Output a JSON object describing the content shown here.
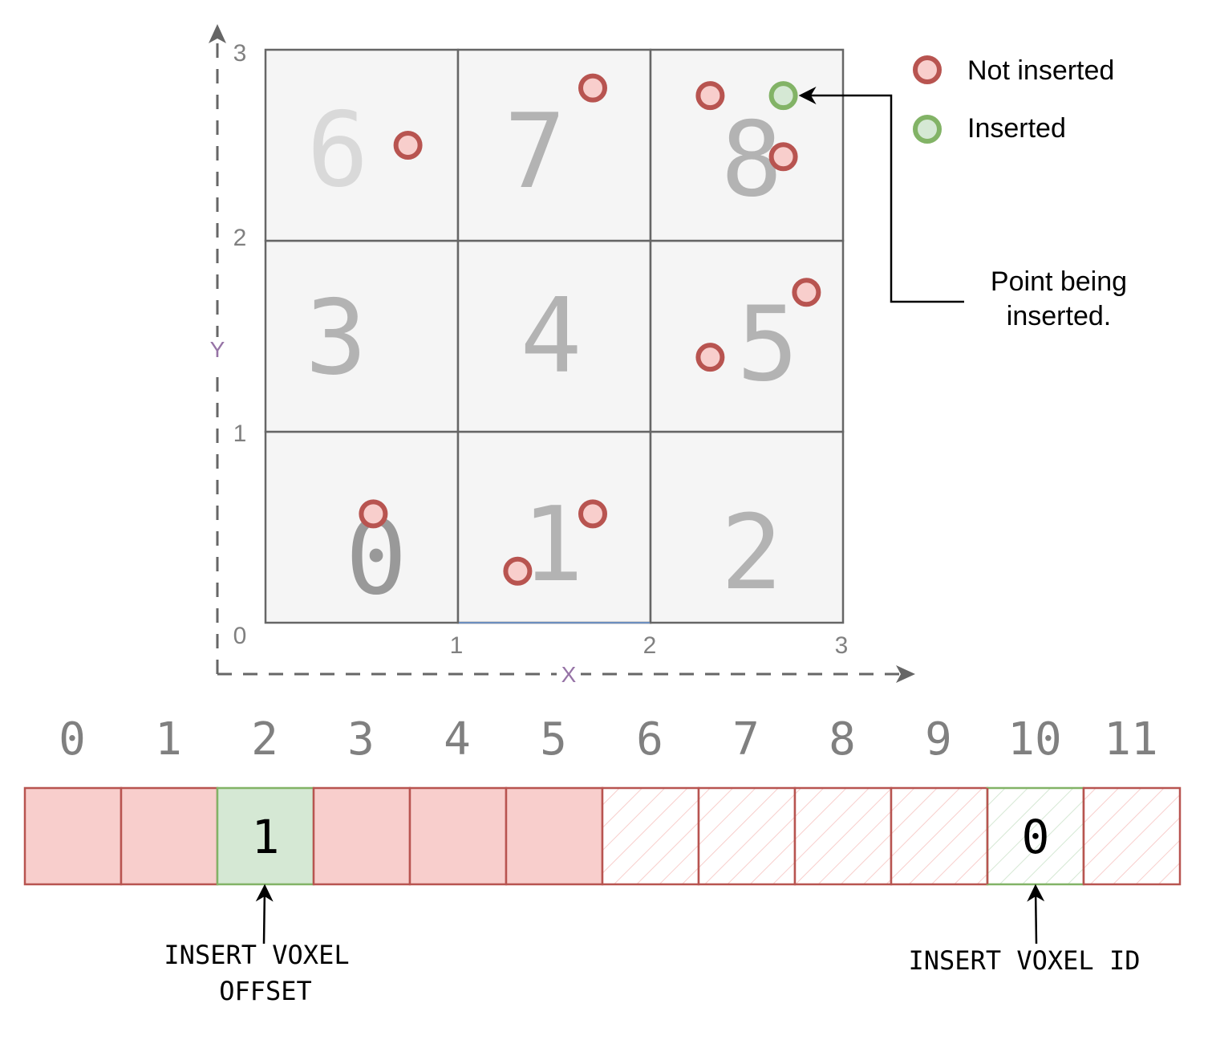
{
  "colors": {
    "red_stroke": "#B85450",
    "red_fill": "#F8CECC",
    "green_stroke": "#82B366",
    "green_fill": "#D5E8D4",
    "cell_fill": "#F5F5F5",
    "grid_stroke": "#666666",
    "axis_label": "#9673A6",
    "tick": "#808080"
  },
  "grid": {
    "cells": [
      {
        "id": "0",
        "col": 0,
        "row": 0,
        "color": "#999999"
      },
      {
        "id": "1",
        "col": 1,
        "row": 0,
        "color": "#B3B3B3"
      },
      {
        "id": "2",
        "col": 2,
        "row": 0,
        "color": "#B3B3B3"
      },
      {
        "id": "3",
        "col": 0,
        "row": 1,
        "color": "#B3B3B3"
      },
      {
        "id": "4",
        "col": 1,
        "row": 1,
        "color": "#B3B3B3"
      },
      {
        "id": "5",
        "col": 2,
        "row": 1,
        "color": "#B3B3B3"
      },
      {
        "id": "6",
        "col": 0,
        "row": 2,
        "color": "#D9D9D9"
      },
      {
        "id": "7",
        "col": 1,
        "row": 2,
        "color": "#B3B3B3"
      },
      {
        "id": "8",
        "col": 2,
        "row": 2,
        "color": "#B3B3B3"
      }
    ],
    "x_ticks": [
      "1",
      "2",
      "3"
    ],
    "y_ticks": [
      "0",
      "1",
      "2",
      "3"
    ],
    "x_label": "X",
    "y_label": "Y"
  },
  "points": [
    {
      "x": 0.74,
      "y": 2.5,
      "status": "not_inserted"
    },
    {
      "x": 1.7,
      "y": 2.8,
      "status": "not_inserted"
    },
    {
      "x": 2.31,
      "y": 2.76,
      "status": "not_inserted"
    },
    {
      "x": 2.69,
      "y": 2.76,
      "status": "inserted"
    },
    {
      "x": 2.69,
      "y": 2.44,
      "status": "not_inserted"
    },
    {
      "x": 2.81,
      "y": 1.73,
      "status": "not_inserted"
    },
    {
      "x": 2.31,
      "y": 1.39,
      "status": "not_inserted"
    },
    {
      "x": 0.56,
      "y": 0.57,
      "status": "not_inserted"
    },
    {
      "x": 1.7,
      "y": 0.57,
      "status": "not_inserted"
    },
    {
      "x": 1.31,
      "y": 0.27,
      "status": "not_inserted"
    }
  ],
  "legend": {
    "not_inserted": "Not inserted",
    "inserted": "Inserted"
  },
  "annotation": {
    "line1": "Point being",
    "line2": "inserted."
  },
  "array": {
    "indices": [
      "0",
      "1",
      "2",
      "3",
      "4",
      "5",
      "6",
      "7",
      "8",
      "9",
      "10",
      "11"
    ],
    "slots": [
      {
        "style": "filled",
        "value": ""
      },
      {
        "style": "filled",
        "value": ""
      },
      {
        "style": "green",
        "value": "1"
      },
      {
        "style": "filled",
        "value": ""
      },
      {
        "style": "filled",
        "value": ""
      },
      {
        "style": "filled",
        "value": ""
      },
      {
        "style": "hatched",
        "value": ""
      },
      {
        "style": "hatched",
        "value": ""
      },
      {
        "style": "hatched",
        "value": ""
      },
      {
        "style": "hatched",
        "value": ""
      },
      {
        "style": "hatched-green",
        "value": "0"
      },
      {
        "style": "hatched",
        "value": ""
      }
    ]
  },
  "labels": {
    "offset_line1": "INSERT VOXEL",
    "offset_line2": "OFFSET",
    "voxel_id": "INSERT VOXEL ID"
  }
}
